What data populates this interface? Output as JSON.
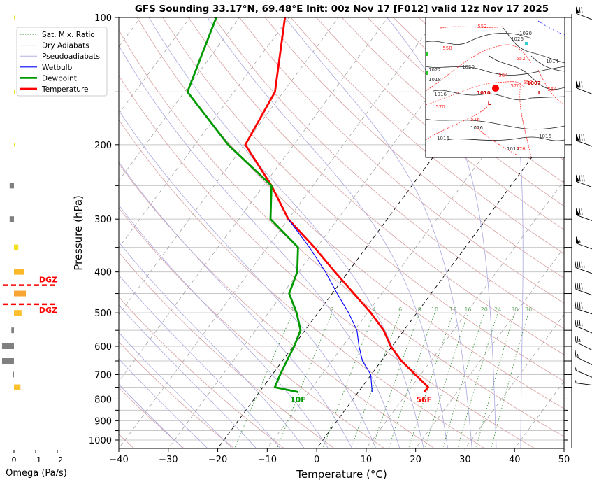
{
  "chart_data": {
    "type": "line",
    "title": "GFS Sounding 33.17°N, 69.48°E Init: 00z Nov 17 [F012] valid 12z Nov 17 2025",
    "xlabel": "Temperature (°C)",
    "ylabel": "Pressure (hPa)",
    "xlim": [
      -40,
      50
    ],
    "ylim": [
      1050,
      100
    ],
    "y_scale": "log",
    "skew": "skew-T log-P",
    "xticks": [
      "−40",
      "−30",
      "−20",
      "−10",
      "0",
      "10",
      "20",
      "30",
      "40",
      "50"
    ],
    "xtick_values": [
      -40,
      -30,
      -20,
      -10,
      0,
      10,
      20,
      30,
      40,
      50
    ],
    "yticks": [
      "100",
      "200",
      "300",
      "400",
      "500",
      "600",
      "700",
      "800",
      "900",
      "1000"
    ],
    "ytick_values": [
      100,
      200,
      300,
      400,
      500,
      600,
      700,
      800,
      900,
      1000
    ],
    "minor_pressure_gridlines": [
      150,
      250,
      350,
      450,
      550,
      650,
      750,
      850,
      950,
      1050
    ],
    "legend": {
      "placement": "top-left",
      "entries": [
        "Sat. Mix. Ratio",
        "Dry Adiabats",
        "Pseudoadiabats",
        "Wetbulb",
        "Dewpoint",
        "Temperature"
      ]
    },
    "series": [
      {
        "name": "Temperature",
        "color": "#ff0000",
        "pressure": [
          100,
          150,
          200,
          250,
          300,
          350,
          400,
          500,
          550,
          600,
          650,
          700,
          750,
          770
        ],
        "values": [
          -70.8,
          -61.7,
          -59.8,
          -48.4,
          -40.0,
          -30.5,
          -22.7,
          -9.3,
          -4.1,
          -0.3,
          4.1,
          8.9,
          13.4,
          13.3
        ]
      },
      {
        "name": "Dewpoint",
        "color": "#009900",
        "pressure": [
          100,
          150,
          200,
          250,
          300,
          350,
          400,
          450,
          500,
          550,
          600,
          650,
          700,
          750,
          770
        ],
        "values": [
          -84.7,
          -79.4,
          -63.3,
          -48.4,
          -43.6,
          -33.8,
          -30.3,
          -28.7,
          -24.3,
          -20.9,
          -19.8,
          -19.1,
          -18.4,
          -17.6,
          -12.2
        ]
      },
      {
        "name": "Wetbulb",
        "color": "#0000ff",
        "pressure": [
          300,
          350,
          400,
          450,
          500,
          550,
          600,
          650,
          700,
          750,
          770
        ],
        "values": [
          -40.0,
          -31.5,
          -24.6,
          -19.0,
          -13.8,
          -9.5,
          -6.7,
          -3.8,
          -0.1,
          2.0,
          2.8
        ]
      }
    ],
    "mixing_ratio_labels": [
      "1",
      "2",
      "4",
      "6",
      "8",
      "10",
      "13",
      "16",
      "20",
      "24",
      "30",
      "36"
    ],
    "mixing_ratio_values": [
      1,
      2,
      4,
      6,
      8,
      10,
      13,
      16,
      20,
      24,
      30,
      36
    ],
    "surface_labels": {
      "dewpoint": "10F",
      "temperature": "56F"
    },
    "wind_barbs": [
      {
        "pressure": 100,
        "speed_kt": 70,
        "direction_deg": 285
      },
      {
        "pressure": 150,
        "speed_kt": 70,
        "direction_deg": 285
      },
      {
        "pressure": 200,
        "speed_kt": 80,
        "direction_deg": 280
      },
      {
        "pressure": 250,
        "speed_kt": 80,
        "direction_deg": 280
      },
      {
        "pressure": 300,
        "speed_kt": 70,
        "direction_deg": 280
      },
      {
        "pressure": 350,
        "speed_kt": 55,
        "direction_deg": 280
      },
      {
        "pressure": 400,
        "speed_kt": 45,
        "direction_deg": 280
      },
      {
        "pressure": 450,
        "speed_kt": 40,
        "direction_deg": 280
      },
      {
        "pressure": 500,
        "speed_kt": 40,
        "direction_deg": 275
      },
      {
        "pressure": 550,
        "speed_kt": 35,
        "direction_deg": 290
      },
      {
        "pressure": 600,
        "speed_kt": 25,
        "direction_deg": 300
      },
      {
        "pressure": 650,
        "speed_kt": 15,
        "direction_deg": 300
      },
      {
        "pressure": 700,
        "speed_kt": 5,
        "direction_deg": 290
      },
      {
        "pressure": 750,
        "speed_kt": 5,
        "direction_deg": 245
      }
    ],
    "omega_panel": {
      "xlabel": "Omega (Pa/s)",
      "xticks": [
        "0",
        "−1",
        "−2"
      ],
      "xtick_values": [
        0,
        -1,
        -2
      ],
      "bars": [
        {
          "pressure": 100,
          "value": -0.05,
          "color": "#f5e020"
        },
        {
          "pressure": 150,
          "value": -0.03,
          "color": "#f5e020"
        },
        {
          "pressure": 200,
          "value": -0.05,
          "color": "#f5e020"
        },
        {
          "pressure": 250,
          "value": 0.2,
          "color": "#808080"
        },
        {
          "pressure": 300,
          "value": 0.2,
          "color": "#808080"
        },
        {
          "pressure": 350,
          "value": -0.2,
          "color": "#f5e020"
        },
        {
          "pressure": 400,
          "value": -0.45,
          "color": "#fbb829"
        },
        {
          "pressure": 450,
          "value": -0.55,
          "color": "#f7a535"
        },
        {
          "pressure": 500,
          "value": -0.35,
          "color": "#fbc02d"
        },
        {
          "pressure": 550,
          "value": 0.12,
          "color": "#808080"
        },
        {
          "pressure": 600,
          "value": 0.55,
          "color": "#808080"
        },
        {
          "pressure": 650,
          "value": 0.55,
          "color": "#808080"
        },
        {
          "pressure": 700,
          "value": 0.05,
          "color": "#808080"
        },
        {
          "pressure": 750,
          "value": -0.3,
          "color": "#fbc02d"
        }
      ],
      "dgz": {
        "label": "DGZ",
        "top_pressure": 430,
        "bottom_pressure": 477,
        "color": "#ff0000"
      }
    }
  },
  "inset_map": {
    "highs_lows": [
      {
        "label": "L",
        "value": "1010",
        "color": "#cc0000"
      },
      {
        "label": "L",
        "value": "1007",
        "color": "#cc0000"
      }
    ],
    "isobar_labels": [
      "1030",
      "1026",
      "1020",
      "1018",
      "1016",
      "1016",
      "1016",
      "1016",
      "1014",
      "1014",
      "1022"
    ],
    "height_labels": [
      "552",
      "558",
      "552",
      "564",
      "570",
      "558",
      "564",
      "570",
      "576",
      "576"
    ],
    "marker_color": "#ff0000"
  }
}
